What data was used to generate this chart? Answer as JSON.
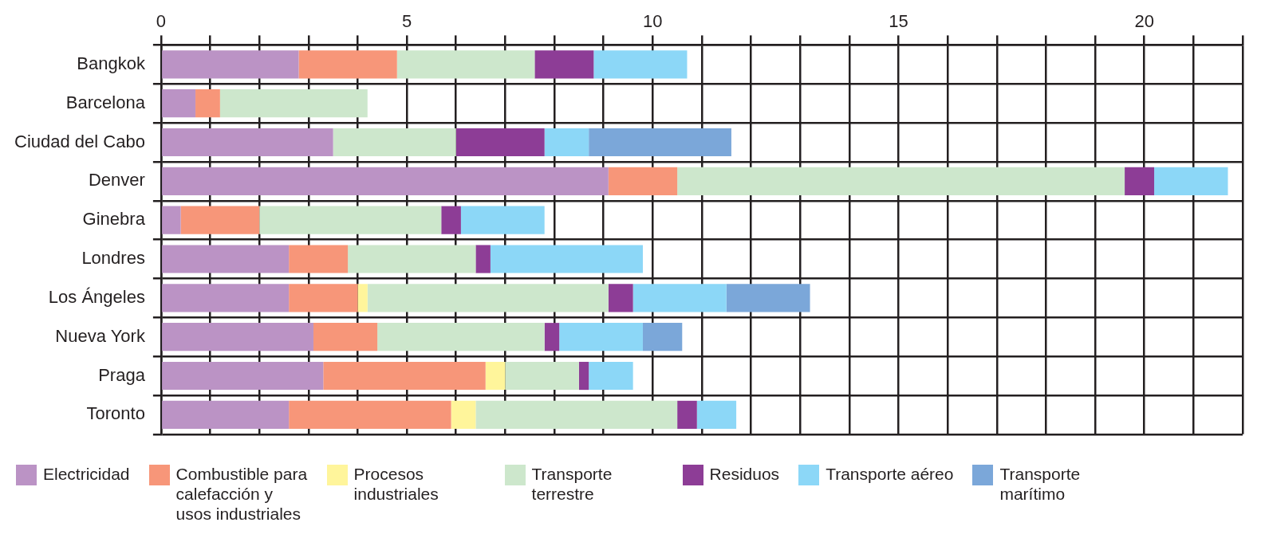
{
  "chart_data": {
    "type": "bar",
    "orientation": "horizontal",
    "stacked": true,
    "categories": [
      "Bangkok",
      "Barcelona",
      "Ciudad del Cabo",
      "Denver",
      "Ginebra",
      "Londres",
      "Los Ángeles",
      "Nueva York",
      "Praga",
      "Toronto"
    ],
    "series": [
      {
        "name": "Electricidad",
        "color": "#bb93c5",
        "values": [
          2.8,
          0.7,
          3.5,
          9.1,
          0.4,
          2.6,
          2.6,
          3.1,
          3.3,
          2.6
        ]
      },
      {
        "name": "Combustible para calefacción y usos industriales",
        "color": "#f79679",
        "values": [
          2.0,
          0.5,
          null,
          1.4,
          1.6,
          1.2,
          1.4,
          1.3,
          3.3,
          3.3
        ]
      },
      {
        "name": "Procesos industriales",
        "color": "#fff59b",
        "values": [
          null,
          null,
          null,
          null,
          null,
          null,
          0.2,
          null,
          0.4,
          0.5
        ]
      },
      {
        "name": "Transporte terrestre",
        "color": "#cde7cc",
        "values": [
          2.8,
          3.0,
          2.5,
          9.1,
          3.7,
          2.6,
          4.9,
          3.4,
          1.5,
          4.1
        ]
      },
      {
        "name": "Residuos",
        "color": "#8d3d96",
        "values": [
          1.2,
          null,
          1.8,
          0.6,
          0.4,
          0.3,
          0.5,
          0.3,
          0.2,
          0.4
        ]
      },
      {
        "name": "Transporte aéreo",
        "color": "#8cd7f7",
        "values": [
          1.9,
          null,
          0.9,
          1.5,
          1.7,
          3.1,
          1.9,
          1.7,
          0.9,
          0.8
        ]
      },
      {
        "name": "Transporte marítimo",
        "color": "#7ba7d9",
        "values": [
          null,
          null,
          2.9,
          null,
          null,
          null,
          1.7,
          0.8,
          null,
          null
        ]
      }
    ],
    "xlim": [
      0,
      22
    ],
    "xticks": [
      0,
      {
        "value": 1,
        "label": null
      },
      {
        "value": 2,
        "label": null
      },
      {
        "value": 3,
        "label": null
      },
      {
        "value": 4,
        "label": null
      },
      5,
      {
        "value": 6,
        "label": null
      },
      {
        "value": 7,
        "label": null
      },
      {
        "value": 8,
        "label": null
      },
      {
        "value": 9,
        "label": null
      },
      10,
      {
        "value": 11,
        "label": null
      },
      {
        "value": 12,
        "label": null
      },
      {
        "value": 13,
        "label": null
      },
      {
        "value": 14,
        "label": null
      },
      15,
      {
        "value": 16,
        "label": null
      },
      {
        "value": 17,
        "label": null
      },
      {
        "value": 18,
        "label": null
      },
      {
        "value": 19,
        "label": null
      },
      20,
      {
        "value": 21,
        "label": null
      },
      {
        "value": 22,
        "label": null
      }
    ],
    "grid": true,
    "legend": "bottom left"
  }
}
